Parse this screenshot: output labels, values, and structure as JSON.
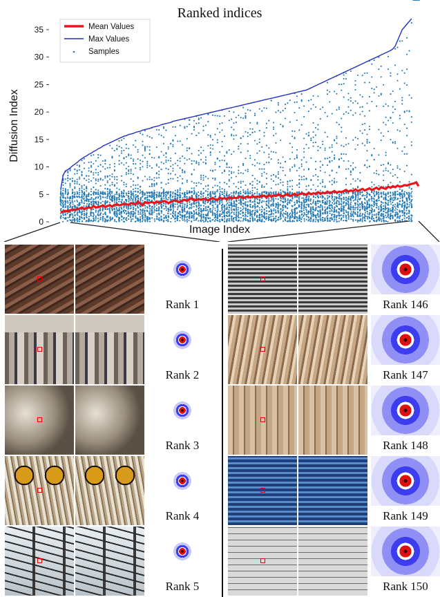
{
  "chart_data": {
    "type": "scatter",
    "title": "Ranked indices",
    "xlabel": "Image Index",
    "ylabel": "Diffusion Index",
    "xlim": [
      0,
      150
    ],
    "ylim": [
      0,
      36
    ],
    "yticks": [
      0,
      5,
      10,
      15,
      20,
      25,
      30,
      35
    ],
    "grid": false,
    "legend_position": "top-left",
    "series": [
      {
        "name": "Mean Values",
        "style": "line",
        "color": "#e8161b",
        "values": [
          1.7,
          1.9,
          2.0,
          1.9,
          2.1,
          2.2,
          2.2,
          2.3,
          2.4,
          2.6,
          2.3,
          2.5,
          2.6,
          2.5,
          2.9,
          2.6,
          2.7,
          2.8,
          3.0,
          2.7,
          2.9,
          3.0,
          2.8,
          3.1,
          3.2,
          3.0,
          3.1,
          3.3,
          3.2,
          3.1,
          3.4,
          3.3,
          3.2,
          3.7,
          3.3,
          3.0,
          3.6,
          3.4,
          3.5,
          3.6,
          3.4,
          3.7,
          3.5,
          3.6,
          3.8,
          3.7,
          3.4,
          3.6,
          3.8,
          3.9,
          3.7,
          3.6,
          3.9,
          4.0,
          3.8,
          4.1,
          4.3,
          3.9,
          4.0,
          4.1,
          4.0,
          4.2,
          4.1,
          3.9,
          4.2,
          4.3,
          4.1,
          4.0,
          4.4,
          4.2,
          4.3,
          4.1,
          4.5,
          4.2,
          4.4,
          4.3,
          4.5,
          4.6,
          4.3,
          4.5,
          4.6,
          4.4,
          4.7,
          4.5,
          4.6,
          4.5,
          4.8,
          4.7,
          4.5,
          4.9,
          4.6,
          4.8,
          4.7,
          5.0,
          4.8,
          4.6,
          4.9,
          5.0,
          4.7,
          4.9,
          5.1,
          4.8,
          5.0,
          5.2,
          5.1,
          4.9,
          5.3,
          5.0,
          5.2,
          5.1,
          5.4,
          5.1,
          5.3,
          5.2,
          5.5,
          5.2,
          5.4,
          5.6,
          5.3,
          5.5,
          5.4,
          5.6,
          5.8,
          5.5,
          5.7,
          5.6,
          5.9,
          5.6,
          5.8,
          6.0,
          5.7,
          5.9,
          6.1,
          5.8,
          6.0,
          6.2,
          5.9,
          6.3,
          6.1,
          6.0,
          6.4,
          6.2,
          6.5,
          6.3,
          6.6,
          6.4,
          6.5,
          6.7,
          6.6,
          6.8,
          6.9,
          7.0,
          7.2,
          6.5
        ]
      },
      {
        "name": "Max Values",
        "style": "line",
        "color": "#1f2fbf",
        "values": [
          6.0,
          8.5,
          9.3,
          9.5,
          9.8,
          10.2,
          10.5,
          10.8,
          11.2,
          11.5,
          11.8,
          12.0,
          12.3,
          12.5,
          12.8,
          13.0,
          13.3,
          13.5,
          13.8,
          14.0,
          14.2,
          14.4,
          14.6,
          14.8,
          15.0,
          15.2,
          15.4,
          15.6,
          15.7,
          15.9,
          16.0,
          16.1,
          16.3,
          16.4,
          16.5,
          16.7,
          16.8,
          16.9,
          17.0,
          17.2,
          17.3,
          17.4,
          17.5,
          17.7,
          17.8,
          17.9,
          18.0,
          18.1,
          18.3,
          18.4,
          18.5,
          18.6,
          18.7,
          18.8,
          18.9,
          19.0,
          19.1,
          19.2,
          19.3,
          19.4,
          19.5,
          19.6,
          19.7,
          19.8,
          19.9,
          20.0,
          20.1,
          20.2,
          20.3,
          20.4,
          20.5,
          20.6,
          20.7,
          20.8,
          20.9,
          21.0,
          21.1,
          21.2,
          21.3,
          21.4,
          21.5,
          21.6,
          21.7,
          21.8,
          21.9,
          22.0,
          22.1,
          22.2,
          22.3,
          22.4,
          22.5,
          22.6,
          22.7,
          22.8,
          22.9,
          23.0,
          23.1,
          23.2,
          23.3,
          23.4,
          23.5,
          23.6,
          23.7,
          23.8,
          23.9,
          24.0,
          24.2,
          24.4,
          24.6,
          24.8,
          25.0,
          25.2,
          25.4,
          25.6,
          25.8,
          26.0,
          26.2,
          26.4,
          26.6,
          26.8,
          27.0,
          27.2,
          27.4,
          27.6,
          27.8,
          28.0,
          28.2,
          28.4,
          28.6,
          28.8,
          29.0,
          29.2,
          29.4,
          29.6,
          29.8,
          30.0,
          30.2,
          30.4,
          30.6,
          30.8,
          31.0,
          31.2,
          31.5,
          32.0,
          33.0,
          34.0,
          35.0,
          35.5,
          36.0,
          36.5,
          37.0
        ]
      },
      {
        "name": "Samples",
        "style": "scatter",
        "color": "#1f77b4",
        "description_points": "dense samples per image index, ranging from 0 up to each max value, concentrated below ~5"
      }
    ]
  },
  "figure": {
    "left_ranks": [
      {
        "label": "Rank 1",
        "theme": "wing"
      },
      {
        "label": "Rank 2",
        "theme": "crowd"
      },
      {
        "label": "Rank 3",
        "theme": "sculpture"
      },
      {
        "label": "Rank 4",
        "theme": "owl"
      },
      {
        "label": "Rank 5",
        "theme": "wires"
      }
    ],
    "right_ranks": [
      {
        "label": "Rank 146",
        "theme": "grille"
      },
      {
        "label": "Rank 147",
        "theme": "arches"
      },
      {
        "label": "Rank 148",
        "theme": "slats"
      },
      {
        "label": "Rank 149",
        "theme": "glass"
      },
      {
        "label": "Rank 150",
        "theme": "tiles"
      }
    ]
  }
}
